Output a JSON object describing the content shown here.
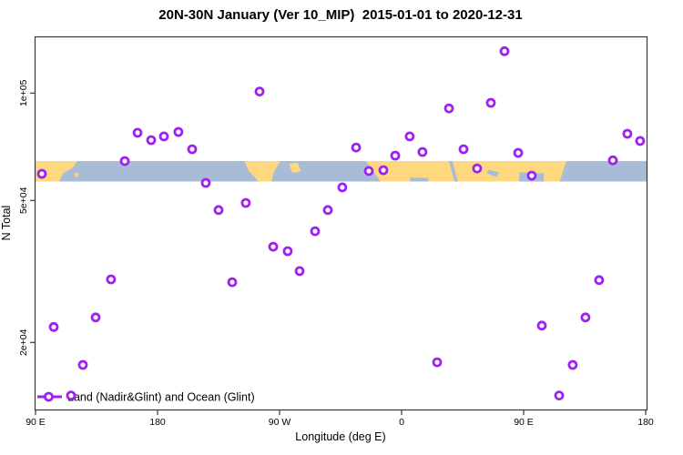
{
  "title": "20N-30N January (Ver 10_MIP)  2015-01-01 to 2020-12-31",
  "colors": {
    "point": "#A020F0",
    "axis": "#383838",
    "land": "#FFD77E",
    "ocean": "#A8BCD8"
  },
  "chart_data": {
    "type": "scatter",
    "title": "20N-30N January (Ver 10_MIP)  2015-01-01 to 2020-12-31",
    "xlabel": "Longitude (deg E)",
    "ylabel": "N Total",
    "legend": {
      "label": "Land (Nadir&Glint) and Ocean (Glint)",
      "position": "bottom-left"
    },
    "x_axis": {
      "range_deg": [
        90,
        540
      ],
      "ticks": [
        {
          "lon": 90,
          "label": "90 E"
        },
        {
          "lon": 180,
          "label": "180"
        },
        {
          "lon": 270,
          "label": "90 W"
        },
        {
          "lon": 360,
          "label": "0"
        },
        {
          "lon": 450,
          "label": "90 E"
        },
        {
          "lon": 540,
          "label": "180"
        }
      ]
    },
    "y_axis": {
      "scale": "log",
      "range": [
        12000,
        150000
      ],
      "ticks": [
        {
          "value": 100000,
          "label": "1e+05"
        },
        {
          "value": 50000,
          "label": "5e+04"
        },
        {
          "value": 20000,
          "label": "2e+04"
        }
      ]
    },
    "points_format": "[longitude_axis_deg_E (90..540 wrapping), N_total]",
    "points": [
      [
        435.9,
        131000
      ],
      [
        255.2,
        101000
      ],
      [
        394.9,
        90600
      ],
      [
        425.8,
        93900
      ],
      [
        165.2,
        77400
      ],
      [
        175.3,
        73800
      ],
      [
        184.7,
        75600
      ],
      [
        195.4,
        77800
      ],
      [
        205.5,
        69600
      ],
      [
        155.8,
        64500
      ],
      [
        94.7,
        59400
      ],
      [
        215.6,
        56000
      ],
      [
        225.0,
        47000
      ],
      [
        245.1,
        49200
      ],
      [
        526.5,
        76900
      ],
      [
        535.9,
        73400
      ],
      [
        366.0,
        75600
      ],
      [
        326.4,
        70400
      ],
      [
        375.4,
        68400
      ],
      [
        355.3,
        66800
      ],
      [
        405.7,
        69600
      ],
      [
        446.0,
        68000
      ],
      [
        515.8,
        64800
      ],
      [
        335.8,
        60500
      ],
      [
        346.6,
        60800
      ],
      [
        415.7,
        61500
      ],
      [
        456.0,
        58700
      ],
      [
        316.3,
        54400
      ],
      [
        305.6,
        47000
      ],
      [
        296.2,
        41000
      ],
      [
        265.3,
        37100
      ],
      [
        276.0,
        36050
      ],
      [
        284.8,
        31700
      ],
      [
        235.1,
        29500
      ],
      [
        145.7,
        30050
      ],
      [
        134.3,
        23500
      ],
      [
        103.4,
        22100
      ],
      [
        124.9,
        17300
      ],
      [
        116.2,
        14200
      ],
      [
        505.7,
        29900
      ],
      [
        495.6,
        23500
      ],
      [
        463.4,
        22300
      ],
      [
        486.2,
        17300
      ],
      [
        476.2,
        14200
      ],
      [
        386.2,
        17600
      ]
    ],
    "map_band": {
      "description": "20N-30N latitude strip map drawn across plot",
      "value_top": 64500,
      "value_bottom": 56500,
      "land_polygons": [
        [
          [
            90,
            0
          ],
          [
            121,
            0
          ],
          [
            117,
            0.35
          ],
          [
            110,
            0.62
          ],
          [
            107.5,
            1
          ],
          [
            90,
            1
          ]
        ],
        [
          [
            118.8,
            0.58
          ],
          [
            121.2,
            0.58
          ],
          [
            121.2,
            0.78
          ],
          [
            118.8,
            0.78
          ]
        ],
        [
          [
            244,
            0
          ],
          [
            270.5,
            0
          ],
          [
            266,
            0.5
          ],
          [
            264,
            1
          ],
          [
            254.5,
            1
          ],
          [
            247,
            0.45
          ]
        ],
        [
          [
            277,
            0.12
          ],
          [
            283.5,
            0.08
          ],
          [
            285.5,
            0.5
          ],
          [
            279.5,
            0.58
          ]
        ],
        [
          [
            333.8,
            0
          ],
          [
            481.6,
            0
          ],
          [
            476.5,
            1
          ],
          [
            344.5,
            1
          ]
        ]
      ],
      "ocean_cutouts": [
        [
          [
            394.8,
            0
          ],
          [
            397.5,
            0
          ],
          [
            401.5,
            1
          ],
          [
            399,
            1
          ]
        ],
        [
          [
            424,
            0.42
          ],
          [
            432,
            0.55
          ],
          [
            430,
            0.78
          ],
          [
            423,
            0.6
          ]
        ],
        [
          [
            447,
            0.55
          ],
          [
            465,
            0.6
          ],
          [
            464.8,
            1
          ],
          [
            446.6,
            1
          ]
        ],
        [
          [
            366,
            0.82
          ],
          [
            380,
            0.82
          ],
          [
            379.5,
            1
          ],
          [
            366.5,
            1
          ]
        ]
      ]
    }
  }
}
